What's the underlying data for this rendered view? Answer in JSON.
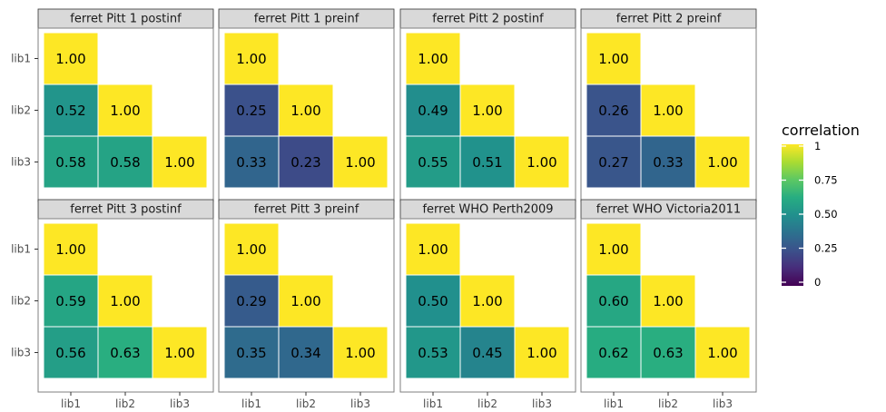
{
  "chart_data": {
    "type": "heatmap",
    "x_categories": [
      "lib1",
      "lib2",
      "lib3"
    ],
    "y_categories": [
      "lib1",
      "lib2",
      "lib3"
    ],
    "panels": [
      {
        "title": "ferret Pitt 1 postinf",
        "values": [
          [
            1.0,
            null,
            null
          ],
          [
            0.52,
            1.0,
            null
          ],
          [
            0.58,
            0.58,
            1.0
          ]
        ],
        "labels": [
          [
            "1.00",
            "",
            ""
          ],
          [
            "0.52",
            "1.00",
            ""
          ],
          [
            "0.58",
            "0.58",
            "1.00"
          ]
        ]
      },
      {
        "title": "ferret Pitt 1 preinf",
        "values": [
          [
            1.0,
            null,
            null
          ],
          [
            0.25,
            1.0,
            null
          ],
          [
            0.33,
            0.23,
            1.0
          ]
        ],
        "labels": [
          [
            "1.00",
            "",
            ""
          ],
          [
            "0.25",
            "1.00",
            ""
          ],
          [
            "0.33",
            "0.23",
            "1.00"
          ]
        ]
      },
      {
        "title": "ferret Pitt 2 postinf",
        "values": [
          [
            1.0,
            null,
            null
          ],
          [
            0.49,
            1.0,
            null
          ],
          [
            0.55,
            0.51,
            1.0
          ]
        ],
        "labels": [
          [
            "1.00",
            "",
            ""
          ],
          [
            "0.49",
            "1.00",
            ""
          ],
          [
            "0.55",
            "0.51",
            "1.00"
          ]
        ]
      },
      {
        "title": "ferret Pitt 2 preinf",
        "values": [
          [
            1.0,
            null,
            null
          ],
          [
            0.26,
            1.0,
            null
          ],
          [
            0.27,
            0.33,
            1.0
          ]
        ],
        "labels": [
          [
            "1.00",
            "",
            ""
          ],
          [
            "0.26",
            "1.00",
            ""
          ],
          [
            "0.27",
            "0.33",
            "1.00"
          ]
        ]
      },
      {
        "title": "ferret Pitt 3 postinf",
        "values": [
          [
            1.0,
            null,
            null
          ],
          [
            0.59,
            1.0,
            null
          ],
          [
            0.56,
            0.63,
            1.0
          ]
        ],
        "labels": [
          [
            "1.00",
            "",
            ""
          ],
          [
            "0.59",
            "1.00",
            ""
          ],
          [
            "0.56",
            "0.63",
            "1.00"
          ]
        ]
      },
      {
        "title": "ferret Pitt 3 preinf",
        "values": [
          [
            1.0,
            null,
            null
          ],
          [
            0.29,
            1.0,
            null
          ],
          [
            0.35,
            0.34,
            1.0
          ]
        ],
        "labels": [
          [
            "1.00",
            "",
            ""
          ],
          [
            "0.29",
            "1.00",
            ""
          ],
          [
            "0.35",
            "0.34",
            "1.00"
          ]
        ]
      },
      {
        "title": "ferret WHO Perth2009",
        "values": [
          [
            1.0,
            null,
            null
          ],
          [
            0.5,
            1.0,
            null
          ],
          [
            0.53,
            0.45,
            1.0
          ]
        ],
        "labels": [
          [
            "1.00",
            "",
            ""
          ],
          [
            "0.50",
            "1.00",
            ""
          ],
          [
            "0.53",
            "0.45",
            "1.00"
          ]
        ]
      },
      {
        "title": "ferret WHO Victoria2011",
        "values": [
          [
            1.0,
            null,
            null
          ],
          [
            0.6,
            1.0,
            null
          ],
          [
            0.62,
            0.63,
            1.0
          ]
        ],
        "labels": [
          [
            "1.00",
            "",
            ""
          ],
          [
            "0.60",
            "1.00",
            ""
          ],
          [
            "0.62",
            "0.63",
            "1.00"
          ]
        ]
      }
    ],
    "legend": {
      "title": "correlation",
      "ticks": [
        1,
        0.75,
        0.5,
        0.25,
        0
      ],
      "tick_labels": [
        "1",
        "0.75",
        "0.50",
        "0.25",
        "0"
      ],
      "range": [
        0,
        1
      ],
      "colormap": "viridis",
      "placement": "right"
    },
    "grid": false
  }
}
